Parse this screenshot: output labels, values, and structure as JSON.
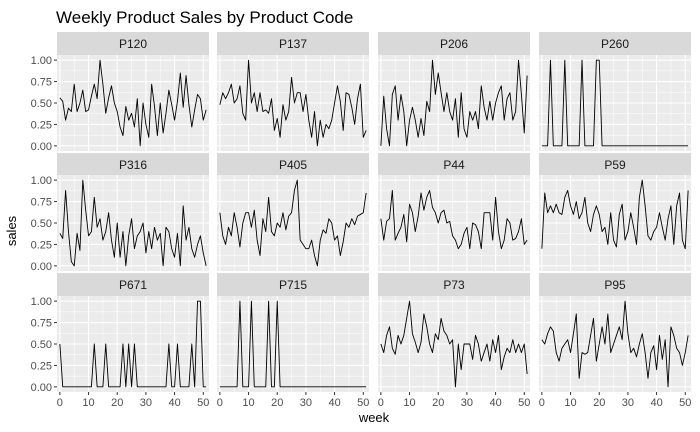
{
  "chart_data": {
    "type": "line",
    "facet": "wrap",
    "title": "Weekly Product Sales by Product Code",
    "xlabel": "week",
    "ylabel": "sales",
    "xlim": [
      -1,
      52
    ],
    "ylim": [
      -0.06,
      1.06
    ],
    "xticks": [
      0,
      10,
      20,
      30,
      40,
      50
    ],
    "yticks": [
      0.0,
      0.25,
      0.5,
      0.75,
      1.0
    ],
    "ytick_labels": [
      "0.00",
      "0.25",
      "0.50",
      "0.75",
      "1.00"
    ],
    "xtick_labels": [
      "0",
      "10",
      "20",
      "30",
      "40",
      "50"
    ],
    "grid": true,
    "colors": {
      "panel_bg": "#ebebeb",
      "strip_bg": "#d9d9d9",
      "grid_major": "#ffffff",
      "line": "#000000",
      "text": "#4d4d4d",
      "title": "#000000"
    },
    "x": [
      0,
      1,
      2,
      3,
      4,
      5,
      6,
      7,
      8,
      9,
      10,
      11,
      12,
      13,
      14,
      15,
      16,
      17,
      18,
      19,
      20,
      21,
      22,
      23,
      24,
      25,
      26,
      27,
      28,
      29,
      30,
      31,
      32,
      33,
      34,
      35,
      36,
      37,
      38,
      39,
      40,
      41,
      42,
      43,
      44,
      45,
      46,
      47,
      48,
      49,
      50,
      51
    ],
    "panels": [
      {
        "name": "P120",
        "values": [
          0.56,
          0.52,
          0.3,
          0.44,
          0.4,
          0.72,
          0.4,
          0.5,
          0.65,
          0.4,
          0.42,
          0.58,
          0.72,
          0.55,
          1.0,
          0.72,
          0.38,
          0.56,
          0.7,
          0.5,
          0.4,
          0.22,
          0.12,
          0.46,
          0.3,
          0.38,
          0.22,
          0.55,
          0.0,
          0.5,
          0.25,
          0.1,
          0.72,
          0.46,
          0.12,
          0.5,
          0.15,
          0.38,
          0.65,
          0.48,
          0.3,
          0.52,
          0.85,
          0.45,
          0.82,
          0.48,
          0.22,
          0.42,
          0.6,
          0.55,
          0.3,
          0.42
        ]
      },
      {
        "name": "P137",
        "values": [
          0.48,
          0.62,
          0.55,
          0.62,
          0.72,
          0.5,
          0.55,
          0.7,
          0.38,
          0.3,
          1.0,
          0.5,
          0.62,
          0.4,
          0.62,
          0.4,
          0.42,
          0.38,
          0.55,
          0.18,
          0.32,
          0.1,
          0.48,
          0.3,
          0.4,
          0.8,
          0.5,
          0.62,
          0.62,
          0.4,
          0.6,
          0.3,
          0.1,
          0.4,
          0.0,
          0.3,
          0.1,
          0.25,
          0.2,
          0.3,
          0.5,
          0.7,
          0.52,
          0.18,
          0.62,
          0.6,
          0.45,
          0.25,
          0.55,
          0.72,
          0.1,
          0.18
        ]
      },
      {
        "name": "P206",
        "values": [
          0.0,
          0.58,
          0.2,
          0.0,
          0.6,
          0.7,
          0.3,
          0.6,
          0.4,
          0.0,
          0.3,
          0.45,
          0.3,
          0.1,
          0.32,
          0.12,
          0.52,
          0.4,
          1.0,
          0.6,
          0.85,
          0.62,
          0.4,
          0.62,
          0.4,
          0.3,
          0.55,
          0.1,
          0.62,
          0.2,
          0.1,
          0.4,
          0.3,
          0.4,
          0.2,
          0.7,
          0.45,
          0.3,
          0.52,
          0.3,
          0.5,
          0.62,
          0.7,
          0.3,
          0.55,
          0.62,
          0.3,
          0.4,
          1.0,
          0.6,
          0.15,
          0.82
        ]
      },
      {
        "name": "P260",
        "values": [
          0,
          0,
          0,
          1,
          0,
          0,
          0,
          0,
          1,
          0,
          0,
          0,
          0,
          0,
          1,
          0,
          0,
          0,
          0,
          1,
          1,
          0,
          0,
          0,
          0,
          0,
          0,
          0,
          0,
          0,
          0,
          0,
          0,
          0,
          0,
          0,
          0,
          0,
          0,
          0,
          0,
          0,
          0,
          0,
          0,
          0,
          0,
          0,
          0,
          0,
          0,
          0
        ]
      },
      {
        "name": "P316",
        "values": [
          0.38,
          0.32,
          0.88,
          0.4,
          0.05,
          0.0,
          0.38,
          0.18,
          1.0,
          0.65,
          0.35,
          0.4,
          0.8,
          0.45,
          0.55,
          0.3,
          0.4,
          0.62,
          0.3,
          0.1,
          0.5,
          0.1,
          0.4,
          0.0,
          0.35,
          0.55,
          0.2,
          0.35,
          0.4,
          0.5,
          0.15,
          0.4,
          0.2,
          0.45,
          0.3,
          0.38,
          0.0,
          0.45,
          0.4,
          0.2,
          0.1,
          0.38,
          0.0,
          0.7,
          0.3,
          0.45,
          0.2,
          0.1,
          0.25,
          0.35,
          0.15,
          0.0
        ]
      },
      {
        "name": "P405",
        "values": [
          0.62,
          0.35,
          0.25,
          0.45,
          0.35,
          0.62,
          0.45,
          0.22,
          0.5,
          0.62,
          0.62,
          0.45,
          0.65,
          0.3,
          0.12,
          0.55,
          0.4,
          0.8,
          0.4,
          0.35,
          0.5,
          0.45,
          0.62,
          0.42,
          0.58,
          0.62,
          0.88,
          1.0,
          0.3,
          0.25,
          0.2,
          0.2,
          0.3,
          0.12,
          0.0,
          0.3,
          0.42,
          0.38,
          0.55,
          0.5,
          0.3,
          0.35,
          0.12,
          0.28,
          0.5,
          0.45,
          0.55,
          0.48,
          0.58,
          0.6,
          0.62,
          0.85
        ]
      },
      {
        "name": "P44",
        "values": [
          0.55,
          0.3,
          0.52,
          0.55,
          0.88,
          0.3,
          0.38,
          0.45,
          0.6,
          0.28,
          0.72,
          0.62,
          0.4,
          0.58,
          0.85,
          0.65,
          0.8,
          0.88,
          0.68,
          0.62,
          0.5,
          0.62,
          0.65,
          0.5,
          0.52,
          0.35,
          0.3,
          0.2,
          0.25,
          0.38,
          0.45,
          0.2,
          0.5,
          0.48,
          0.4,
          0.2,
          0.62,
          0.62,
          0.62,
          0.3,
          0.8,
          0.4,
          0.2,
          0.3,
          0.55,
          0.5,
          0.3,
          0.32,
          0.4,
          0.55,
          0.25,
          0.3
        ]
      },
      {
        "name": "P59",
        "values": [
          0.2,
          0.85,
          0.62,
          0.7,
          0.62,
          0.72,
          0.62,
          0.6,
          0.8,
          0.88,
          0.7,
          0.6,
          0.75,
          0.55,
          0.62,
          0.8,
          0.5,
          0.4,
          0.6,
          0.7,
          0.6,
          0.4,
          0.45,
          0.25,
          0.62,
          0.3,
          0.22,
          0.6,
          0.72,
          0.3,
          0.4,
          0.62,
          0.45,
          0.25,
          0.8,
          1.0,
          0.7,
          0.35,
          0.3,
          0.4,
          0.45,
          0.62,
          0.45,
          0.3,
          0.55,
          0.7,
          0.25,
          0.7,
          0.85,
          0.3,
          0.2,
          0.88
        ]
      },
      {
        "name": "P671",
        "values": [
          0.5,
          0,
          0,
          0,
          0,
          0,
          0,
          0,
          0,
          0,
          0,
          0,
          0.5,
          0,
          0,
          0,
          0.5,
          0,
          0,
          0,
          0,
          0,
          0.5,
          0,
          0.5,
          0,
          0.5,
          0,
          0,
          0,
          0,
          0,
          0,
          0,
          0,
          0,
          0,
          0,
          0.5,
          0,
          0,
          0.5,
          0,
          0,
          0,
          0,
          0.5,
          0,
          1.0,
          1.0,
          0,
          0
        ]
      },
      {
        "name": "P715",
        "values": [
          0,
          0,
          0,
          0,
          0,
          0,
          0,
          1,
          0,
          0,
          0,
          1,
          0,
          0,
          0,
          0,
          0,
          1,
          0,
          0,
          1,
          0,
          0,
          0,
          0,
          0,
          0,
          0,
          0,
          0,
          0,
          0,
          0,
          0,
          0,
          0,
          0,
          0,
          0,
          0,
          0,
          0,
          0,
          0,
          0,
          0,
          0,
          0,
          0,
          0,
          0,
          0
        ]
      },
      {
        "name": "P73",
        "values": [
          0.5,
          0.4,
          0.6,
          0.7,
          0.45,
          0.38,
          0.6,
          0.5,
          0.6,
          0.8,
          1.0,
          0.62,
          0.52,
          0.4,
          0.52,
          0.85,
          0.7,
          0.5,
          0.4,
          0.62,
          0.55,
          0.8,
          0.65,
          0.6,
          0.5,
          0.55,
          0.0,
          0.5,
          0.2,
          0.5,
          0.5,
          0.5,
          0.32,
          0.6,
          0.5,
          0.3,
          0.4,
          0.5,
          0.3,
          0.55,
          0.4,
          0.6,
          0.2,
          0.35,
          0.45,
          0.4,
          0.55,
          0.4,
          0.5,
          0.4,
          0.5,
          0.15
        ]
      },
      {
        "name": "P95",
        "values": [
          0.55,
          0.5,
          0.62,
          0.7,
          0.65,
          0.4,
          0.3,
          0.45,
          0.5,
          0.55,
          0.4,
          0.62,
          0.85,
          0.1,
          0.4,
          0.38,
          0.4,
          0.6,
          0.8,
          0.3,
          0.5,
          0.7,
          0.5,
          0.85,
          0.4,
          0.5,
          0.6,
          0.7,
          0.55,
          1.0,
          0.62,
          0.4,
          0.45,
          0.35,
          0.5,
          0.62,
          0.4,
          0.1,
          0.4,
          0.48,
          0.2,
          0.6,
          0.32,
          0.55,
          0.0,
          0.7,
          0.6,
          0.45,
          0.4,
          0.25,
          0.4,
          0.6
        ]
      }
    ]
  }
}
